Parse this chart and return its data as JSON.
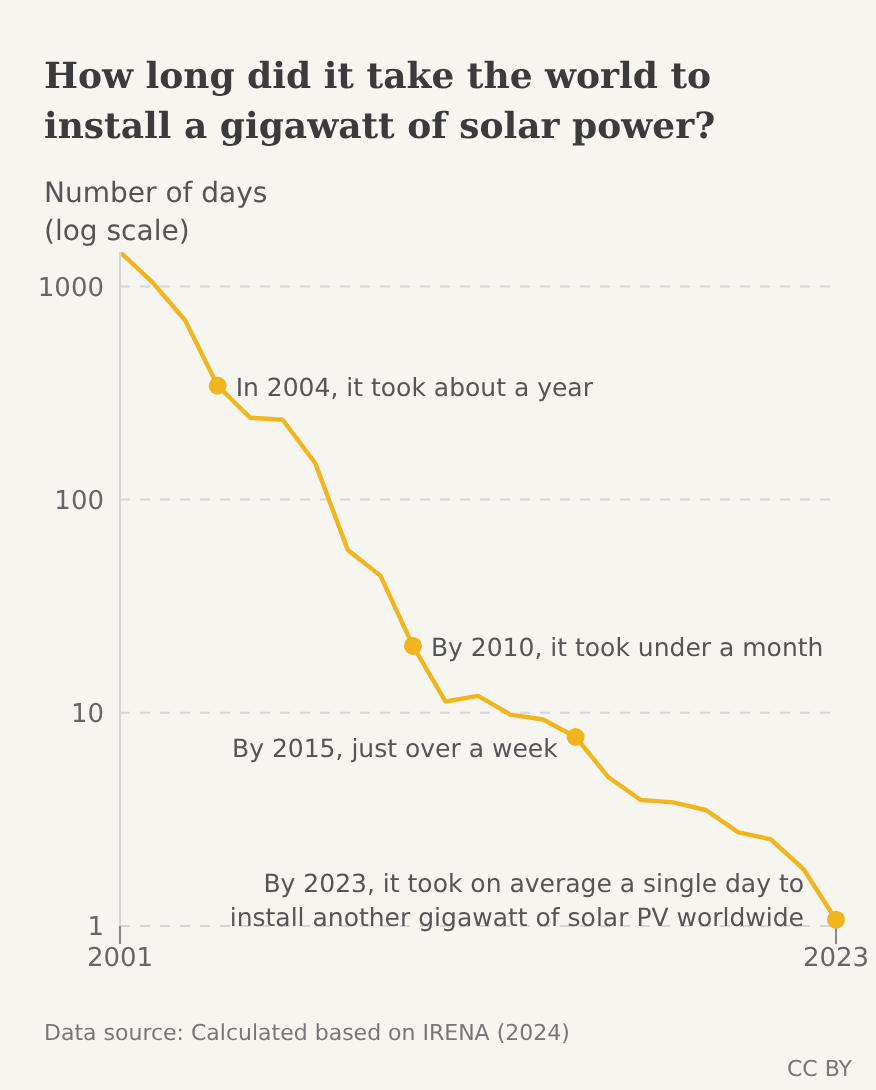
{
  "chart_data": {
    "type": "line",
    "title": "How long did it take the world to install a gigawatt of solar power?",
    "ylabel": "Number of days\n(log scale)",
    "x": [
      2001,
      2002,
      2003,
      2004,
      2005,
      2006,
      2007,
      2008,
      2009,
      2010,
      2011,
      2012,
      2013,
      2014,
      2015,
      2016,
      2017,
      2018,
      2019,
      2020,
      2021,
      2022,
      2023
    ],
    "series": [
      {
        "color": "#f0b51f",
        "values": [
          1450,
          1045,
          694,
          342,
          242,
          237,
          148,
          58,
          44,
          20.6,
          11.3,
          12,
          9.8,
          9.3,
          7.7,
          5.0,
          3.9,
          3.8,
          3.5,
          2.75,
          2.55,
          1.85,
          1.07
        ]
      }
    ],
    "log": "y",
    "ylim": [
      1,
      1450
    ],
    "xlim": [
      2001,
      2023
    ],
    "xticks": [
      2001,
      2023
    ],
    "yticks": [
      1,
      10,
      100,
      1000
    ],
    "grid": "y",
    "marker": "none",
    "line_style": "solid",
    "annotations": [
      {
        "text": "In 2004, it took about a year",
        "x": 2004,
        "y": 342
      },
      {
        "text": "By 2010, it took under a month",
        "x": 2010,
        "y": 20.6
      },
      {
        "text": "By 2015, just over a week",
        "x": 2015,
        "y": 7.7
      },
      {
        "text": "By 2023, it took on average a single day to install another gigawatt of solar PV worldwide",
        "x": 2023,
        "y": 1.07
      },
      "Data source: Calculated based on IRENA (2024)",
      "CC BY"
    ]
  }
}
